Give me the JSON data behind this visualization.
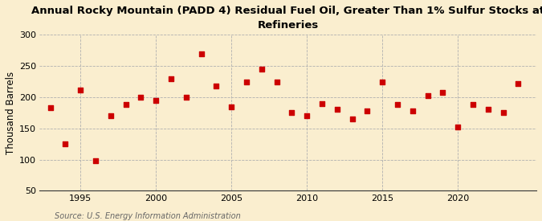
{
  "years": [
    1993,
    1994,
    1995,
    1996,
    1997,
    1998,
    1999,
    2000,
    2001,
    2002,
    2003,
    2004,
    2005,
    2006,
    2007,
    2008,
    2009,
    2010,
    2011,
    2012,
    2013,
    2014,
    2015,
    2016,
    2017,
    2018,
    2019,
    2020,
    2021,
    2022,
    2023,
    2024
  ],
  "values": [
    183,
    125,
    212,
    98,
    170,
    188,
    200,
    195,
    230,
    200,
    270,
    218,
    185,
    225,
    245,
    225,
    175,
    170,
    190,
    180,
    165,
    178,
    225,
    188,
    178,
    202,
    207,
    152,
    188,
    180,
    175,
    222
  ],
  "title": "Annual Rocky Mountain (PADD 4) Residual Fuel Oil, Greater Than 1% Sulfur Stocks at\nRefineries",
  "ylabel": "Thousand Barrels",
  "source": "Source: U.S. Energy Information Administration",
  "marker_color": "#cc0000",
  "background_color": "#faeecf",
  "ylim": [
    50,
    300
  ],
  "yticks": [
    50,
    100,
    150,
    200,
    250,
    300
  ],
  "xlim": [
    1992.3,
    2025.2
  ],
  "xticks": [
    1995,
    2000,
    2005,
    2010,
    2015,
    2020
  ],
  "title_fontsize": 9.5,
  "label_fontsize": 8.5,
  "tick_fontsize": 8.0,
  "source_fontsize": 7.0
}
